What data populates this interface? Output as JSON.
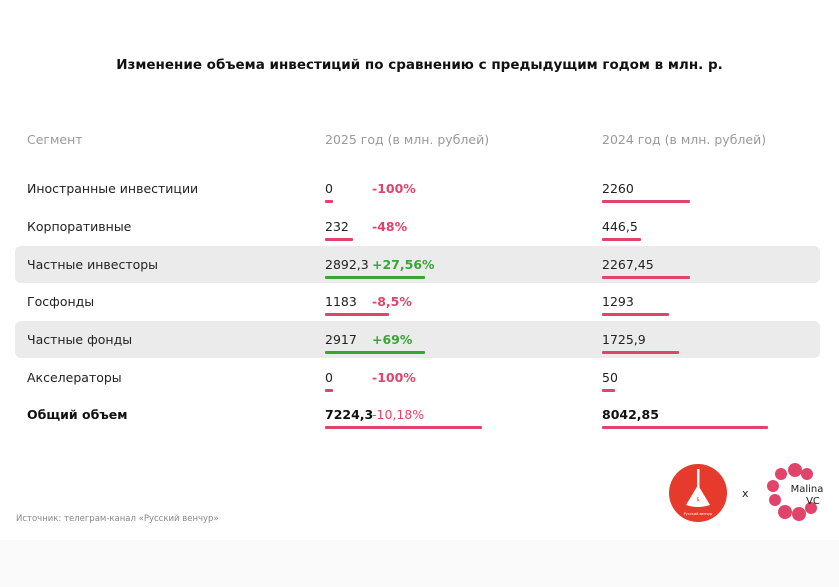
{
  "title": "Изменение объема инвестиций по сравнению с предыдущим годом в млн. р.",
  "headers": {
    "segment": "Сегмент",
    "y2025": "2025 год (в млн. рублей)",
    "y2024": "2024 год (в млн. рублей)"
  },
  "colors": {
    "negative": "#e0446a",
    "positive": "#3aa535",
    "highlight": "#ebebeb"
  },
  "rows": [
    {
      "segment": "Иностранные инвестиции",
      "v2025": "0",
      "change": "-100%",
      "v2024": "2260",
      "n2025": 0,
      "n2024": 2260,
      "positive": false,
      "highlight": false
    },
    {
      "segment": "Корпоративные",
      "v2025": "232",
      "change": "-48%",
      "v2024": "446,5",
      "n2025": 232,
      "n2024": 446.5,
      "positive": false,
      "highlight": false
    },
    {
      "segment": "Частные инвесторы",
      "v2025": "2892,3",
      "change": "+27,56%",
      "v2024": "2267,45",
      "n2025": 2892.3,
      "n2024": 2267.45,
      "positive": true,
      "highlight": true
    },
    {
      "segment": "Госфонды",
      "v2025": "1183",
      "change": "-8,5%",
      "v2024": "1293",
      "n2025": 1183,
      "n2024": 1293,
      "positive": false,
      "highlight": false
    },
    {
      "segment": "Частные фонды",
      "v2025": "2917",
      "change": "+69%",
      "v2024": "1725,9",
      "n2025": 2917,
      "n2024": 1725.9,
      "positive": true,
      "highlight": true
    },
    {
      "segment": "Акселераторы",
      "v2025": "0",
      "change": "-100%",
      "v2024": "50",
      "n2025": 0,
      "n2024": 50,
      "positive": false,
      "highlight": false
    },
    {
      "segment": "Общий объем",
      "v2025": "7224,3",
      "change": "-10,18%",
      "v2024": "8042,85",
      "n2025": 7224.3,
      "n2024": 8042.85,
      "positive": false,
      "highlight": false,
      "bold": true
    }
  ],
  "source": "Источник: телеграм-канал «Русский венчур»",
  "logos": {
    "left": "Русский венчур",
    "separator": "x",
    "right": "Malina VC"
  }
}
